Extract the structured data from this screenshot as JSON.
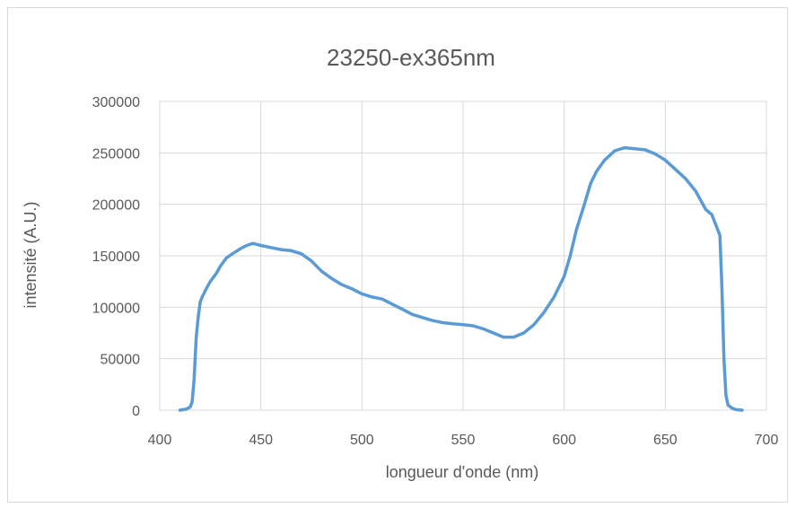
{
  "chart_data": {
    "type": "line",
    "title": "23250-ex365nm",
    "xlabel": "longueur d'onde (nm)",
    "ylabel": "intensité (A.U.)",
    "xlim": [
      400,
      700
    ],
    "ylim": [
      0,
      300000
    ],
    "xticks": [
      400,
      450,
      500,
      550,
      600,
      650,
      700
    ],
    "yticks": [
      0,
      50000,
      100000,
      150000,
      200000,
      250000,
      300000
    ],
    "grid": true,
    "series_color": "#5b9bd5",
    "series": [
      {
        "x": [
          410,
          413,
          415,
          416,
          417,
          418,
          419,
          420,
          421,
          423,
          425,
          428,
          430,
          433,
          436,
          440,
          443,
          446,
          450,
          455,
          460,
          465,
          470,
          475,
          480,
          485,
          490,
          495,
          500,
          505,
          510,
          515,
          520,
          525,
          530,
          535,
          540,
          545,
          550,
          555,
          560,
          565,
          570,
          575,
          580,
          585,
          590,
          595,
          600,
          603,
          606,
          610,
          613,
          616,
          620,
          625,
          630,
          635,
          640,
          645,
          650,
          655,
          660,
          665,
          670,
          673,
          675,
          677,
          678,
          679,
          680,
          681,
          683,
          685,
          688
        ],
        "y": [
          0,
          1000,
          3000,
          8000,
          30000,
          70000,
          90000,
          105000,
          110000,
          118000,
          125000,
          133000,
          140000,
          148000,
          152000,
          157000,
          160000,
          162000,
          160000,
          158000,
          156000,
          155000,
          152000,
          145000,
          135000,
          128000,
          122000,
          118000,
          113000,
          110000,
          108000,
          103000,
          98000,
          93000,
          90000,
          87000,
          85000,
          84000,
          83000,
          82000,
          79000,
          75000,
          71000,
          71000,
          75000,
          83000,
          95000,
          110000,
          130000,
          150000,
          175000,
          200000,
          220000,
          232000,
          243000,
          252000,
          255000,
          254000,
          253000,
          249000,
          243000,
          234000,
          225000,
          213000,
          195000,
          190000,
          180000,
          170000,
          120000,
          50000,
          15000,
          5000,
          2000,
          500,
          0
        ]
      }
    ]
  }
}
